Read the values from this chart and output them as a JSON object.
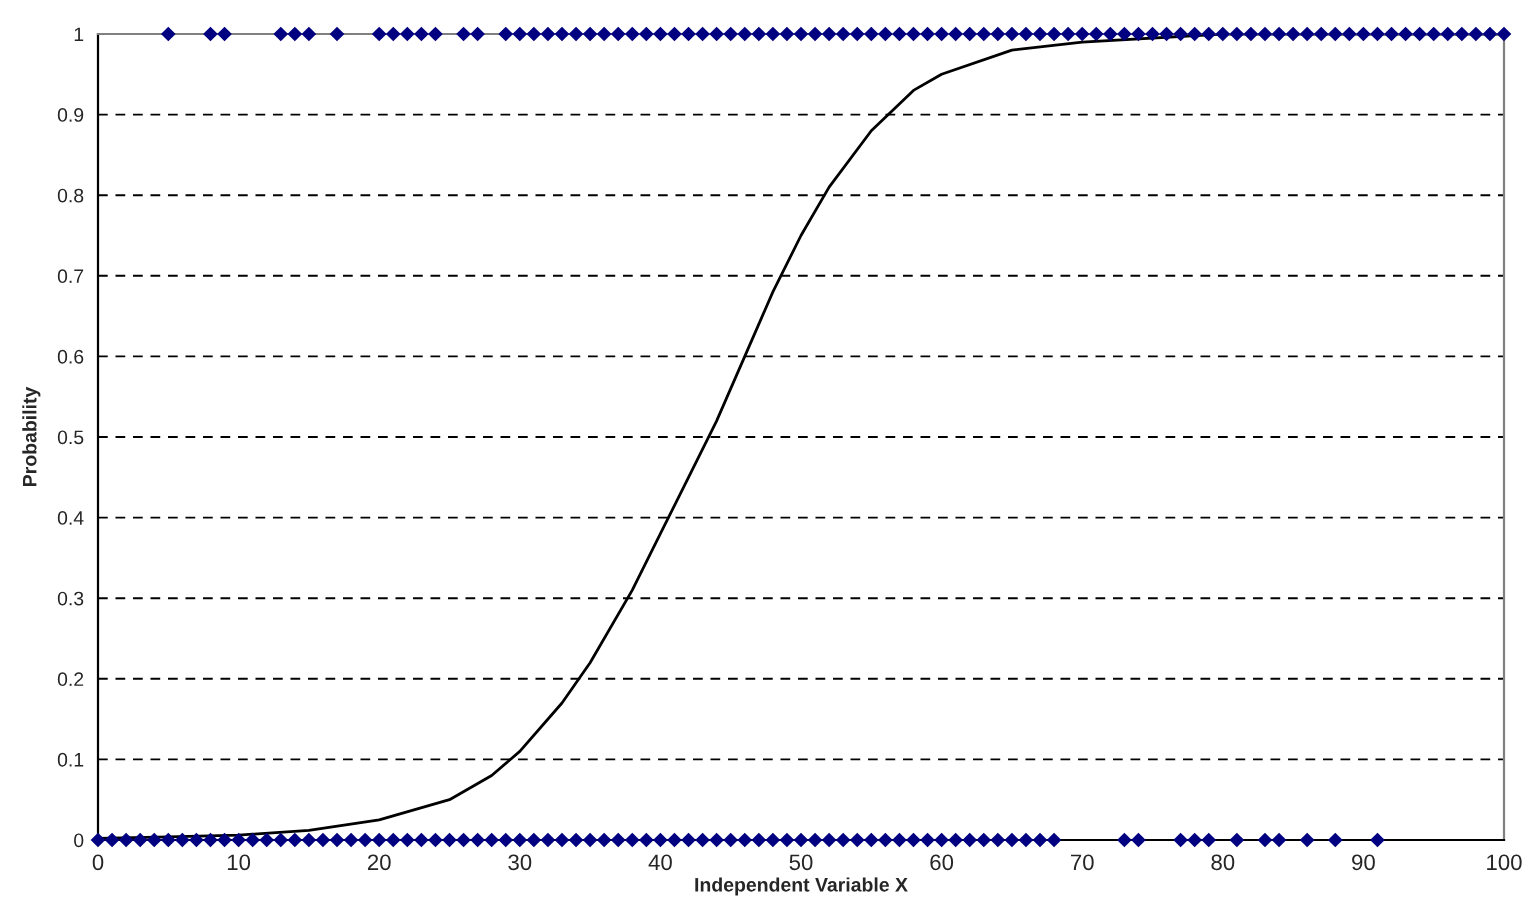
{
  "chart_data": {
    "type": "scatter",
    "xlabel": "Independent Variable X",
    "ylabel": "Probability",
    "xlim": [
      0,
      100
    ],
    "xticks": [
      0,
      10,
      20,
      30,
      40,
      50,
      60,
      70,
      80,
      90,
      100
    ],
    "ylim": [
      0,
      1
    ],
    "yticks": [
      0,
      0.1,
      0.2,
      0.3,
      0.4,
      0.5,
      0.6,
      0.7,
      0.8,
      0.9,
      1
    ],
    "grid": "y",
    "legend": false,
    "series": [
      {
        "color": "#000080",
        "marker": "diamond",
        "x": [
          0,
          1,
          2,
          3,
          4,
          5,
          6,
          7,
          8,
          9,
          10,
          11,
          12,
          13,
          14,
          15,
          16,
          17,
          18,
          19,
          20,
          21,
          22,
          23,
          24,
          25,
          26,
          27,
          28,
          29,
          30,
          31,
          32,
          33,
          34,
          35,
          36,
          37,
          38,
          39,
          40,
          41,
          42,
          43,
          44,
          45,
          46,
          47,
          48,
          49,
          50,
          51,
          52,
          53,
          54,
          55,
          56,
          57,
          58,
          59,
          60,
          61,
          62,
          63,
          64,
          65,
          66,
          67,
          68,
          73,
          74,
          77,
          78,
          79,
          81,
          83,
          84,
          86,
          88,
          91
        ],
        "values": [
          0,
          0,
          0,
          0,
          0,
          0,
          0,
          0,
          0,
          0,
          0,
          0,
          0,
          0,
          0,
          0,
          0,
          0,
          0,
          0,
          0,
          0,
          0,
          0,
          0,
          0,
          0,
          0,
          0,
          0,
          0,
          0,
          0,
          0,
          0,
          0,
          0,
          0,
          0,
          0,
          0,
          0,
          0,
          0,
          0,
          0,
          0,
          0,
          0,
          0,
          0,
          0,
          0,
          0,
          0,
          0,
          0,
          0,
          0,
          0,
          0,
          0,
          0,
          0,
          0,
          0,
          0,
          0,
          0,
          0,
          0,
          0,
          0,
          0,
          0,
          0,
          0,
          0,
          0,
          0
        ]
      },
      {
        "color": "#000080",
        "marker": "diamond",
        "x": [
          5,
          8,
          9,
          13,
          14,
          15,
          17,
          20,
          21,
          22,
          23,
          24,
          26,
          27,
          29,
          30,
          31,
          32,
          33,
          34,
          35,
          36,
          37,
          38,
          39,
          40,
          41,
          42,
          43,
          44,
          45,
          46,
          47,
          48,
          49,
          50,
          51,
          52,
          53,
          54,
          55,
          56,
          57,
          58,
          59,
          60,
          61,
          62,
          63,
          64,
          65,
          66,
          67,
          68,
          69,
          70,
          71,
          72,
          73,
          74,
          75,
          76,
          77,
          78,
          79,
          80,
          81,
          82,
          83,
          84,
          85,
          86,
          87,
          88,
          89,
          90,
          91,
          92,
          93,
          94,
          95,
          96,
          97,
          98,
          99,
          100
        ],
        "values": [
          1,
          1,
          1,
          1,
          1,
          1,
          1,
          1,
          1,
          1,
          1,
          1,
          1,
          1,
          1,
          1,
          1,
          1,
          1,
          1,
          1,
          1,
          1,
          1,
          1,
          1,
          1,
          1,
          1,
          1,
          1,
          1,
          1,
          1,
          1,
          1,
          1,
          1,
          1,
          1,
          1,
          1,
          1,
          1,
          1,
          1,
          1,
          1,
          1,
          1,
          1,
          1,
          1,
          1,
          1,
          1,
          1,
          1,
          1,
          1,
          1,
          1,
          1,
          1,
          1,
          1,
          1,
          1,
          1,
          1,
          1,
          1,
          1,
          1,
          1,
          1,
          1,
          1,
          1,
          1,
          1,
          1,
          1,
          1,
          1,
          1
        ]
      },
      {
        "type": "line",
        "color": "#000000",
        "marker": "none",
        "line_style": "solid",
        "x": [
          0,
          5,
          10,
          15,
          20,
          25,
          28,
          30,
          33,
          35,
          38,
          40,
          42,
          44,
          46,
          48,
          50,
          52,
          55,
          58,
          60,
          65,
          70,
          80,
          90,
          100
        ],
        "values": [
          0.002,
          0.004,
          0.006,
          0.012,
          0.025,
          0.05,
          0.08,
          0.11,
          0.17,
          0.22,
          0.31,
          0.38,
          0.45,
          0.52,
          0.6,
          0.68,
          0.75,
          0.81,
          0.88,
          0.93,
          0.95,
          0.98,
          0.99,
          1,
          1,
          1
        ]
      }
    ]
  }
}
